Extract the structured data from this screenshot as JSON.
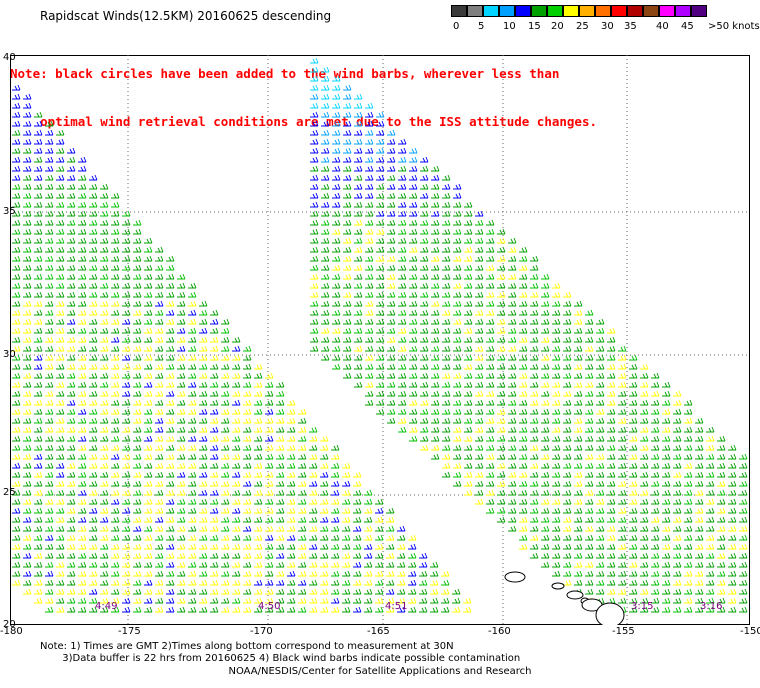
{
  "header": {
    "title": "Rapidscat Winds(12.5KM) 20160625 descending",
    "note_line1": "Note: black circles have been added to the wind barbs, wherever less than",
    "note_line2": "    optimal wind retrieval conditions are met due to the ISS attitude changes."
  },
  "scale": {
    "colors": [
      "#3a3a3a",
      "#7f7f7f",
      "#00d4ff",
      "#00a0ff",
      "#0000ff",
      "#00a000",
      "#00d000",
      "#ffff00",
      "#ffb000",
      "#ff7000",
      "#ff0000",
      "#b00000",
      "#8b4513",
      "#ff00ff",
      "#b000ff",
      "#500080"
    ],
    "labels": [
      "0",
      "5",
      "10",
      "15",
      "20",
      "25",
      "30",
      "35",
      "40",
      "45",
      ">50 knots"
    ]
  },
  "axes": {
    "y_labels": [
      "40",
      "35",
      "30",
      "25",
      "20"
    ],
    "x_labels": [
      "-180",
      "-175",
      "-170",
      "-165",
      "-160",
      "-155",
      "-150"
    ]
  },
  "times": [
    "4:49",
    "4:50",
    "4:51",
    "3:15",
    "3:16"
  ],
  "footer": {
    "line1": "Note: 1) Times are GMT 2)Times along bottom correspond to measurement at 30N",
    "line2": "       3)Data buffer is 22 hrs from 20160625 4) Black wind barbs indicate possible contamination",
    "line3": "NOAA/NESDIS/Center for Satellite Applications and Research"
  }
}
